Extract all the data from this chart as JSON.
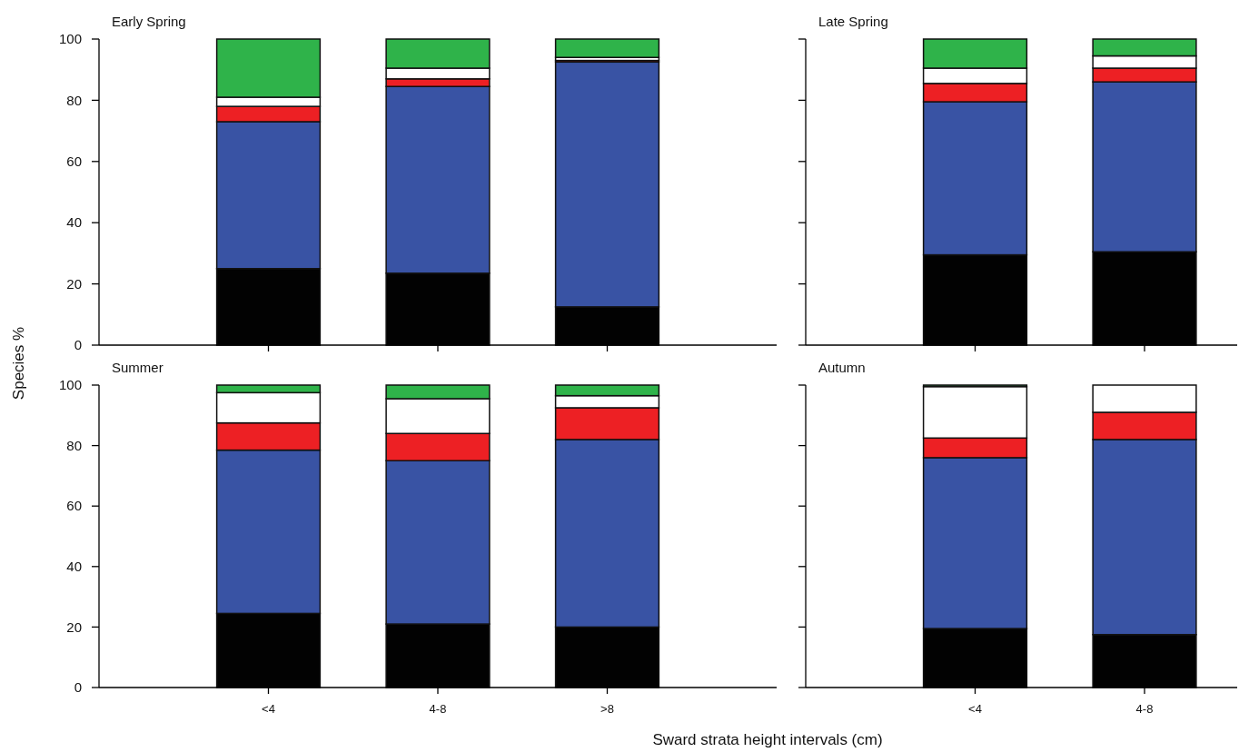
{
  "chart_data": [
    {
      "type": "bar",
      "stacked": true,
      "title": "Early Spring",
      "ylabel": "Species %",
      "categories": [
        null,
        null,
        null
      ],
      "series": [
        {
          "color": "#020202",
          "values": [
            25,
            23.5,
            12.5
          ]
        },
        {
          "color": "#3953a4",
          "values": [
            48,
            61,
            80
          ]
        },
        {
          "color": "#ed2024",
          "values": [
            5,
            2.5,
            0.5
          ]
        },
        {
          "color": "#ffffff",
          "values": [
            3,
            3.5,
            1
          ]
        },
        {
          "color": "#2fb34a",
          "values": [
            19,
            9.5,
            6
          ]
        }
      ],
      "ylim": [
        0,
        100
      ],
      "yticks": [
        0,
        20,
        40,
        60,
        80,
        100
      ],
      "tick_labels": "y"
    },
    {
      "type": "bar",
      "stacked": true,
      "title": "Late Spring",
      "categories": [
        null,
        null
      ],
      "series": [
        {
          "color": "#020202",
          "values": [
            29.5,
            30.5
          ]
        },
        {
          "color": "#3953a4",
          "values": [
            50,
            55.5
          ]
        },
        {
          "color": "#ed2024",
          "values": [
            6,
            4.5
          ]
        },
        {
          "color": "#ffffff",
          "values": [
            5,
            4
          ]
        },
        {
          "color": "#2fb34a",
          "values": [
            9.5,
            5.5
          ]
        }
      ],
      "ylim": [
        0,
        100
      ],
      "yticks": [
        0,
        20,
        40,
        60,
        80,
        100
      ],
      "tick_labels": false
    },
    {
      "type": "bar",
      "stacked": true,
      "title": "Summer",
      "xlabel": "Sward strata height intervals (cm)",
      "categories": [
        "<4",
        "4-8",
        ">8"
      ],
      "series": [
        {
          "color": "#020202",
          "values": [
            24.5,
            21,
            20
          ]
        },
        {
          "color": "#3953a4",
          "values": [
            54,
            54,
            62
          ]
        },
        {
          "color": "#ed2024",
          "values": [
            9,
            9,
            10.5
          ]
        },
        {
          "color": "#ffffff",
          "values": [
            10,
            11.5,
            4
          ]
        },
        {
          "color": "#2fb34a",
          "values": [
            2.5,
            4.5,
            3.5
          ]
        }
      ],
      "ylim": [
        0,
        100
      ],
      "yticks": [
        0,
        20,
        40,
        60,
        80,
        100
      ]
    },
    {
      "type": "bar",
      "stacked": true,
      "title": "Autumn",
      "categories": [
        "<4",
        "4-8"
      ],
      "series": [
        {
          "color": "#020202",
          "values": [
            19.5,
            17.5
          ]
        },
        {
          "color": "#3953a4",
          "values": [
            56.5,
            64.5
          ]
        },
        {
          "color": "#ed2024",
          "values": [
            6.5,
            9
          ]
        },
        {
          "color": "#ffffff",
          "values": [
            17,
            9
          ]
        },
        {
          "color": "#2fb34a",
          "values": [
            0.5,
            0
          ]
        }
      ],
      "ylim": [
        0,
        100
      ],
      "yticks": [
        0,
        20,
        40,
        60,
        80,
        100
      ],
      "tick_labels": "x"
    }
  ]
}
